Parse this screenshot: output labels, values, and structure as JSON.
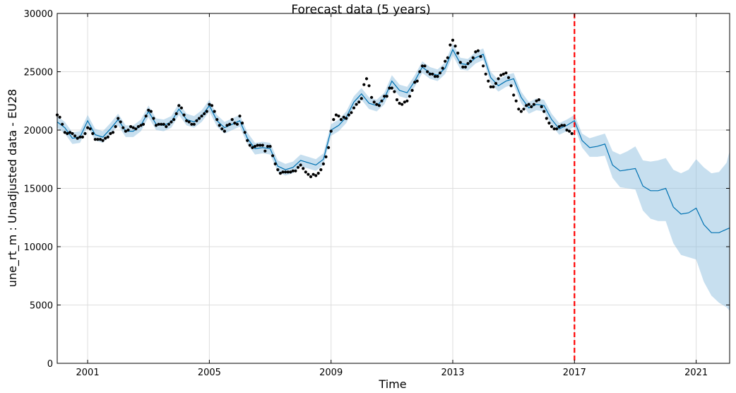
{
  "chart_data": {
    "type": "line",
    "title": "Forecast data (5 years)",
    "xlabel": "Time",
    "ylabel": "une_rt_m : Unadjusted data - EU28",
    "xlim": [
      2000.0,
      2022.1
    ],
    "ylim": [
      0,
      30000
    ],
    "x_ticks": [
      2001,
      2005,
      2009,
      2013,
      2017,
      2021
    ],
    "x_tick_labels": [
      "2001",
      "2005",
      "2009",
      "2013",
      "2017",
      "2021"
    ],
    "y_ticks": [
      0,
      5000,
      10000,
      15000,
      20000,
      25000,
      30000
    ],
    "y_tick_labels": [
      "0",
      "5000",
      "10000",
      "15000",
      "20000",
      "25000",
      "30000"
    ],
    "grid": true,
    "forecast_start": 2017.0,
    "colors": {
      "forecast": "#0072b2",
      "band": "#8fbfe0",
      "observed": "#000000",
      "divider": "#ff0000",
      "grid": "#dddddd"
    },
    "series": [
      {
        "kind": "observed",
        "x": [
          2000.0,
          2000.083,
          2000.167,
          2000.25,
          2000.333,
          2000.417,
          2000.5,
          2000.583,
          2000.667,
          2000.75,
          2000.833,
          2000.917,
          2001.0,
          2001.083,
          2001.167,
          2001.25,
          2001.333,
          2001.417,
          2001.5,
          2001.583,
          2001.667,
          2001.75,
          2001.833,
          2001.917,
          2002.0,
          2002.083,
          2002.167,
          2002.25,
          2002.333,
          2002.417,
          2002.5,
          2002.583,
          2002.667,
          2002.75,
          2002.833,
          2002.917,
          2003.0,
          2003.083,
          2003.167,
          2003.25,
          2003.333,
          2003.417,
          2003.5,
          2003.583,
          2003.667,
          2003.75,
          2003.833,
          2003.917,
          2004.0,
          2004.083,
          2004.167,
          2004.25,
          2004.333,
          2004.417,
          2004.5,
          2004.583,
          2004.667,
          2004.75,
          2004.833,
          2004.917,
          2005.0,
          2005.083,
          2005.167,
          2005.25,
          2005.333,
          2005.417,
          2005.5,
          2005.583,
          2005.667,
          2005.75,
          2005.833,
          2005.917,
          2006.0,
          2006.083,
          2006.167,
          2006.25,
          2006.333,
          2006.417,
          2006.5,
          2006.583,
          2006.667,
          2006.75,
          2006.833,
          2006.917,
          2007.0,
          2007.083,
          2007.167,
          2007.25,
          2007.333,
          2007.417,
          2007.5,
          2007.583,
          2007.667,
          2007.75,
          2007.833,
          2007.917,
          2008.0,
          2008.083,
          2008.167,
          2008.25,
          2008.333,
          2008.417,
          2008.5,
          2008.583,
          2008.667,
          2008.75,
          2008.833,
          2008.917,
          2009.0,
          2009.083,
          2009.167,
          2009.25,
          2009.333,
          2009.417,
          2009.5,
          2009.583,
          2009.667,
          2009.75,
          2009.833,
          2009.917,
          2010.0,
          2010.083,
          2010.167,
          2010.25,
          2010.333,
          2010.417,
          2010.5,
          2010.583,
          2010.667,
          2010.75,
          2010.833,
          2010.917,
          2011.0,
          2011.083,
          2011.167,
          2011.25,
          2011.333,
          2011.417,
          2011.5,
          2011.583,
          2011.667,
          2011.75,
          2011.833,
          2011.917,
          2012.0,
          2012.083,
          2012.167,
          2012.25,
          2012.333,
          2012.417,
          2012.5,
          2012.583,
          2012.667,
          2012.75,
          2012.833,
          2012.917,
          2013.0,
          2013.083,
          2013.167,
          2013.25,
          2013.333,
          2013.417,
          2013.5,
          2013.583,
          2013.667,
          2013.75,
          2013.833,
          2013.917,
          2014.0,
          2014.083,
          2014.167,
          2014.25,
          2014.333,
          2014.417,
          2014.5,
          2014.583,
          2014.667,
          2014.75,
          2014.833,
          2014.917,
          2015.0,
          2015.083,
          2015.167,
          2015.25,
          2015.333,
          2015.417,
          2015.5,
          2015.583,
          2015.667,
          2015.75,
          2015.833,
          2015.917,
          2016.0,
          2016.083,
          2016.167,
          2016.25,
          2016.333,
          2016.417,
          2016.5,
          2016.583,
          2016.667,
          2016.75,
          2016.833,
          2016.917
        ],
        "y": [
          21300,
          21100,
          20500,
          19800,
          19700,
          19800,
          19700,
          19500,
          19300,
          19400,
          19400,
          19700,
          20200,
          20100,
          19700,
          19200,
          19200,
          19200,
          19100,
          19300,
          19400,
          19700,
          19800,
          20300,
          21000,
          20700,
          20200,
          19900,
          20000,
          20300,
          20200,
          20100,
          20300,
          20400,
          20500,
          21200,
          21700,
          21600,
          21000,
          20400,
          20500,
          20500,
          20500,
          20300,
          20500,
          20700,
          20900,
          21400,
          22100,
          21900,
          21300,
          20800,
          20700,
          20500,
          20500,
          20800,
          21000,
          21200,
          21400,
          21600,
          22200,
          22100,
          21600,
          20900,
          20400,
          20100,
          19900,
          20400,
          20500,
          20900,
          20600,
          20500,
          21200,
          20600,
          19800,
          19100,
          18700,
          18500,
          18600,
          18700,
          18700,
          18700,
          18200,
          18600,
          18600,
          17800,
          17100,
          16600,
          16300,
          16400,
          16400,
          16400,
          16400,
          16500,
          16500,
          16800,
          17000,
          16700,
          16400,
          16200,
          16000,
          16200,
          16100,
          16300,
          16600,
          17100,
          17700,
          18500,
          19900,
          20900,
          21300,
          21200,
          20900,
          21100,
          21000,
          21300,
          21500,
          21900,
          22200,
          22400,
          22700,
          23900,
          24400,
          23800,
          22800,
          22400,
          22200,
          22100,
          22500,
          22900,
          22900,
          23600,
          23600,
          23300,
          22600,
          22300,
          22200,
          22400,
          22500,
          22900,
          23400,
          24100,
          24200,
          25000,
          25500,
          25500,
          25000,
          24800,
          24800,
          24600,
          24600,
          24900,
          25300,
          25900,
          26200,
          27300,
          27700,
          27200,
          26600,
          25800,
          25400,
          25400,
          25700,
          25900,
          26200,
          26700,
          26800,
          26300,
          25500,
          24800,
          24200,
          23700,
          23700,
          24000,
          24400,
          24700,
          24800,
          24900,
          24500,
          23800,
          23000,
          22500,
          21800,
          21600,
          21800,
          22100,
          22200,
          22000,
          22200,
          22500,
          22600,
          22000,
          21600,
          21000,
          20600,
          20300,
          20100,
          20100,
          20300,
          20400,
          20400,
          20000,
          19900,
          19700
        ]
      },
      {
        "kind": "forecast",
        "x": [
          2000.0,
          2000.25,
          2000.5,
          2000.75,
          2001.0,
          2001.25,
          2001.5,
          2001.75,
          2002.0,
          2002.25,
          2002.5,
          2002.75,
          2003.0,
          2003.25,
          2003.5,
          2003.75,
          2004.0,
          2004.25,
          2004.5,
          2004.75,
          2005.0,
          2005.25,
          2005.5,
          2005.75,
          2006.0,
          2006.25,
          2006.5,
          2006.75,
          2007.0,
          2007.25,
          2007.5,
          2007.75,
          2008.0,
          2008.25,
          2008.5,
          2008.75,
          2009.0,
          2009.25,
          2009.5,
          2009.75,
          2010.0,
          2010.25,
          2010.5,
          2010.75,
          2011.0,
          2011.25,
          2011.5,
          2011.75,
          2012.0,
          2012.25,
          2012.5,
          2012.75,
          2013.0,
          2013.25,
          2013.5,
          2013.75,
          2014.0,
          2014.25,
          2014.5,
          2014.75,
          2015.0,
          2015.25,
          2015.5,
          2015.75,
          2016.0,
          2016.25,
          2016.5,
          2016.75,
          2017.0,
          2017.25,
          2017.5,
          2017.75,
          2018.0,
          2018.25,
          2018.5,
          2018.75,
          2019.0,
          2019.25,
          2019.5,
          2019.75,
          2020.0,
          2020.25,
          2020.5,
          2020.75,
          2021.0,
          2021.25,
          2021.5,
          2021.75,
          2022.0,
          2022.1
        ],
        "y": [
          20700,
          20200,
          19300,
          19400,
          20800,
          19600,
          19400,
          20100,
          20900,
          19900,
          19900,
          20400,
          21600,
          20500,
          20400,
          20700,
          21800,
          20900,
          20700,
          21200,
          22100,
          20800,
          20200,
          20500,
          20800,
          19300,
          18400,
          18500,
          18400,
          16900,
          16600,
          16800,
          17400,
          17200,
          17000,
          17500,
          20000,
          20400,
          21100,
          22400,
          23100,
          22300,
          22100,
          22700,
          24200,
          23400,
          23200,
          24200,
          25400,
          24900,
          24700,
          25300,
          26900,
          25700,
          25600,
          26200,
          26500,
          24500,
          23800,
          24200,
          24400,
          22800,
          21900,
          22200,
          22100,
          20900,
          20100,
          20400,
          20800,
          19100,
          18500,
          18600,
          18800,
          17000,
          16500,
          16600,
          16700,
          15200,
          14800,
          14800,
          15000,
          13400,
          12800,
          12900,
          13300,
          11900,
          11200,
          11200,
          11500,
          11600
        ],
        "upper": [
          21200,
          20700,
          19800,
          19900,
          21300,
          20100,
          19900,
          20600,
          21400,
          20400,
          20400,
          20900,
          22100,
          21000,
          20900,
          21200,
          22300,
          21400,
          21200,
          21700,
          22600,
          21300,
          20700,
          21000,
          21300,
          19800,
          18900,
          19000,
          18900,
          17400,
          17100,
          17300,
          17900,
          17700,
          17500,
          18000,
          20500,
          20900,
          21600,
          22900,
          23600,
          22800,
          22600,
          23200,
          24700,
          23900,
          23700,
          24700,
          25900,
          25400,
          25200,
          25800,
          27400,
          26200,
          26100,
          26700,
          27000,
          25000,
          24300,
          24700,
          24900,
          23300,
          22400,
          22700,
          22600,
          21400,
          20600,
          20900,
          21300,
          19700,
          19300,
          19500,
          19700,
          18200,
          17900,
          18200,
          18600,
          17400,
          17300,
          17400,
          17600,
          16600,
          16300,
          16600,
          17500,
          16800,
          16300,
          16400,
          17200,
          18200
        ],
        "lower": [
          20200,
          19700,
          18800,
          18900,
          20300,
          19100,
          18900,
          19600,
          20400,
          19400,
          19400,
          19900,
          21100,
          20000,
          19900,
          20200,
          21300,
          20400,
          20200,
          20700,
          21600,
          20300,
          19700,
          20000,
          20300,
          18800,
          17900,
          18000,
          17900,
          16400,
          16100,
          16300,
          16900,
          16700,
          16500,
          17000,
          19500,
          19900,
          20600,
          21900,
          22600,
          21800,
          21600,
          22200,
          23700,
          22900,
          22700,
          23700,
          24900,
          24400,
          24200,
          24800,
          26400,
          25200,
          25100,
          25700,
          26000,
          24000,
          23300,
          23700,
          23900,
          22300,
          21400,
          21700,
          21600,
          20400,
          19600,
          19900,
          20300,
          18500,
          17700,
          17700,
          17800,
          15900,
          15100,
          15000,
          14900,
          13100,
          12400,
          12200,
          12200,
          10300,
          9300,
          9100,
          8900,
          7000,
          5800,
          5200,
          4800,
          4500
        ]
      }
    ]
  }
}
